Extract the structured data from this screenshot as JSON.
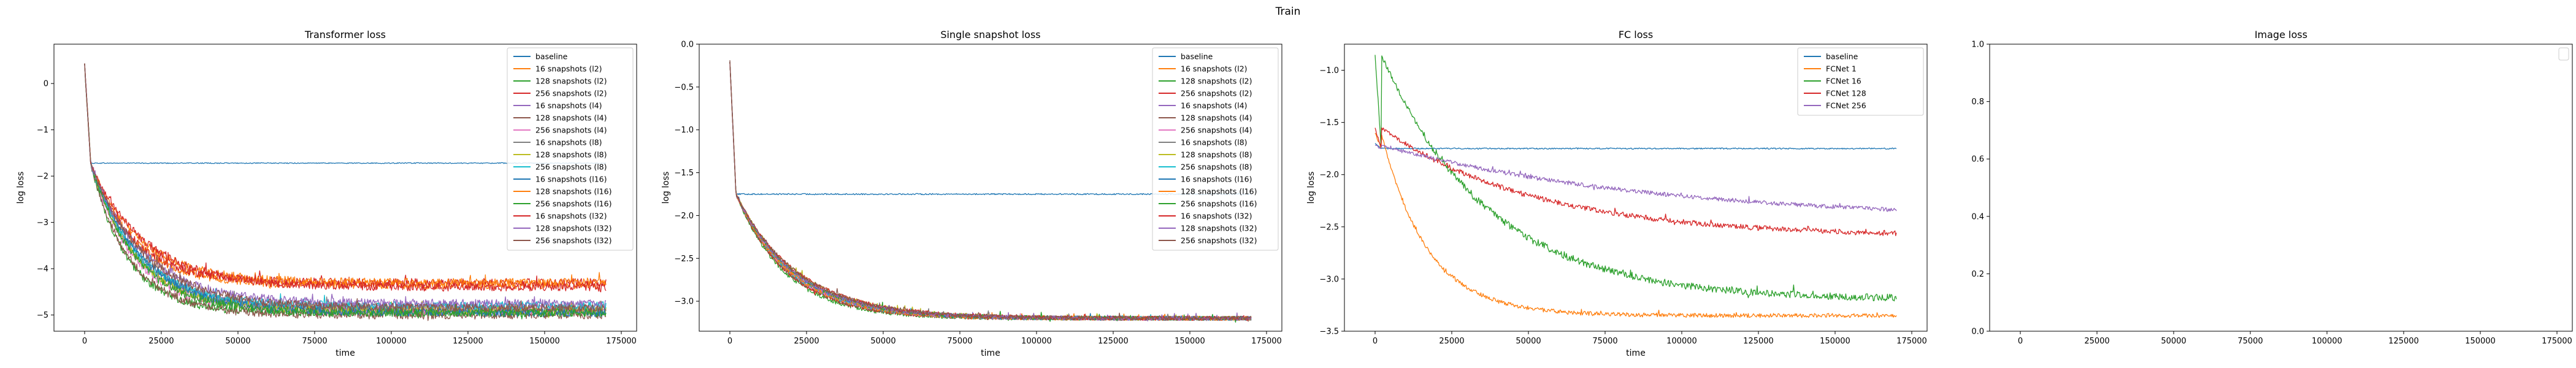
{
  "figure": {
    "suptitle": "Train"
  },
  "chart_data": [
    {
      "type": "line",
      "title": "Transformer loss",
      "xlabel": "time",
      "ylabel": "log loss",
      "xlim": [
        -10000,
        180000
      ],
      "ylim": [
        -5.35,
        0.85
      ],
      "xticks": [
        0,
        25000,
        50000,
        75000,
        100000,
        125000,
        150000,
        175000
      ],
      "yticks": [
        -5,
        -4,
        -3,
        -2,
        -1,
        0
      ],
      "legend": "top-right",
      "series": [
        {
          "name": "baseline",
          "color": "#1f77b4",
          "curve": {
            "start": 0.4,
            "end": -1.72,
            "tau": 0,
            "noise": 0.01,
            "flat": -1.72
          }
        },
        {
          "name": "16 snapshots (l2)",
          "color": "#ff7f0e",
          "curve": {
            "start": 0.4,
            "end": -4.35,
            "tau": 14000,
            "noise": 0.09
          }
        },
        {
          "name": "128 snapshots (l2)",
          "color": "#2ca02c",
          "curve": {
            "start": 0.4,
            "end": -4.95,
            "tau": 12000,
            "noise": 0.09
          }
        },
        {
          "name": "256 snapshots (l2)",
          "color": "#d62728",
          "curve": {
            "start": 0.4,
            "end": -4.3,
            "tau": 14000,
            "noise": 0.09
          }
        },
        {
          "name": "16 snapshots (l4)",
          "color": "#9467bd",
          "curve": {
            "start": 0.4,
            "end": -4.85,
            "tau": 15000,
            "noise": 0.09
          }
        },
        {
          "name": "128 snapshots (l4)",
          "color": "#8c564b",
          "curve": {
            "start": 0.4,
            "end": -5.0,
            "tau": 13000,
            "noise": 0.09
          }
        },
        {
          "name": "256 snapshots (l4)",
          "color": "#e377c2",
          "curve": {
            "start": 0.4,
            "end": -4.9,
            "tau": 14000,
            "noise": 0.09
          }
        },
        {
          "name": "16 snapshots (l8)",
          "color": "#7f7f7f",
          "curve": {
            "start": 0.4,
            "end": -4.85,
            "tau": 16000,
            "noise": 0.09
          }
        },
        {
          "name": "128 snapshots (l8)",
          "color": "#bcbd22",
          "curve": {
            "start": 0.4,
            "end": -4.9,
            "tau": 15000,
            "noise": 0.09
          }
        },
        {
          "name": "256 snapshots (l8)",
          "color": "#17becf",
          "curve": {
            "start": 0.4,
            "end": -4.8,
            "tau": 15000,
            "noise": 0.09
          }
        },
        {
          "name": "16 snapshots (l16)",
          "color": "#1f77b4",
          "curve": {
            "start": 0.4,
            "end": -4.95,
            "tau": 17000,
            "noise": 0.09
          }
        },
        {
          "name": "128 snapshots (l16)",
          "color": "#ff7f0e",
          "curve": {
            "start": 0.4,
            "end": -4.3,
            "tau": 16000,
            "noise": 0.09
          }
        },
        {
          "name": "256 snapshots (l16)",
          "color": "#2ca02c",
          "curve": {
            "start": 0.4,
            "end": -4.95,
            "tau": 15000,
            "noise": 0.09
          }
        },
        {
          "name": "16 snapshots (l32)",
          "color": "#d62728",
          "curve": {
            "start": 0.4,
            "end": -4.4,
            "tau": 18000,
            "noise": 0.09
          }
        },
        {
          "name": "128 snapshots (l32)",
          "color": "#9467bd",
          "curve": {
            "start": 0.4,
            "end": -4.75,
            "tau": 17000,
            "noise": 0.09
          }
        },
        {
          "name": "256 snapshots (l32)",
          "color": "#8c564b",
          "curve": {
            "start": 0.4,
            "end": -4.85,
            "tau": 18000,
            "noise": 0.09
          }
        }
      ]
    },
    {
      "type": "line",
      "title": "Single snapshot loss",
      "xlabel": "time",
      "ylabel": "log loss",
      "xlim": [
        -10000,
        180000
      ],
      "ylim": [
        -3.35,
        0.0
      ],
      "xticks": [
        0,
        25000,
        50000,
        75000,
        100000,
        125000,
        150000,
        175000
      ],
      "yticks": [
        -3.0,
        -2.5,
        -2.0,
        -1.5,
        -1.0,
        -0.5,
        0.0
      ],
      "legend": "top-right",
      "series": [
        {
          "name": "baseline",
          "color": "#1f77b4",
          "curve": {
            "start": -0.2,
            "end": -1.75,
            "tau": 0,
            "noise": 0.008,
            "flat": -1.75
          }
        },
        {
          "name": "16 snapshots (l2)",
          "color": "#ff7f0e",
          "curve": {
            "start": -0.2,
            "end": -3.2,
            "tau": 17000,
            "noise": 0.025
          }
        },
        {
          "name": "128 snapshots (l2)",
          "color": "#2ca02c",
          "curve": {
            "start": -0.2,
            "end": -3.2,
            "tau": 16000,
            "noise": 0.025
          }
        },
        {
          "name": "256 snapshots (l2)",
          "color": "#d62728",
          "curve": {
            "start": -0.2,
            "end": -3.2,
            "tau": 17000,
            "noise": 0.025
          }
        },
        {
          "name": "16 snapshots (l4)",
          "color": "#9467bd",
          "curve": {
            "start": -0.2,
            "end": -3.2,
            "tau": 18000,
            "noise": 0.025
          }
        },
        {
          "name": "128 snapshots (l4)",
          "color": "#8c564b",
          "curve": {
            "start": -0.2,
            "end": -3.2,
            "tau": 17000,
            "noise": 0.025
          }
        },
        {
          "name": "256 snapshots (l4)",
          "color": "#e377c2",
          "curve": {
            "start": -0.2,
            "end": -3.2,
            "tau": 18000,
            "noise": 0.025
          }
        },
        {
          "name": "16 snapshots (l8)",
          "color": "#7f7f7f",
          "curve": {
            "start": -0.2,
            "end": -3.2,
            "tau": 19000,
            "noise": 0.025
          }
        },
        {
          "name": "128 snapshots (l8)",
          "color": "#bcbd22",
          "curve": {
            "start": -0.2,
            "end": -3.2,
            "tau": 20000,
            "noise": 0.025
          }
        },
        {
          "name": "256 snapshots (l8)",
          "color": "#17becf",
          "curve": {
            "start": -0.2,
            "end": -3.2,
            "tau": 18000,
            "noise": 0.025
          }
        },
        {
          "name": "16 snapshots (l16)",
          "color": "#1f77b4",
          "curve": {
            "start": -0.2,
            "end": -3.2,
            "tau": 19000,
            "noise": 0.025
          }
        },
        {
          "name": "128 snapshots (l16)",
          "color": "#ff7f0e",
          "curve": {
            "start": -0.2,
            "end": -3.2,
            "tau": 18000,
            "noise": 0.025
          }
        },
        {
          "name": "256 snapshots (l16)",
          "color": "#2ca02c",
          "curve": {
            "start": -0.2,
            "end": -3.2,
            "tau": 19000,
            "noise": 0.025
          }
        },
        {
          "name": "16 snapshots (l32)",
          "color": "#d62728",
          "curve": {
            "start": -0.2,
            "end": -3.2,
            "tau": 20000,
            "noise": 0.025
          }
        },
        {
          "name": "128 snapshots (l32)",
          "color": "#9467bd",
          "curve": {
            "start": -0.2,
            "end": -3.2,
            "tau": 19000,
            "noise": 0.025
          }
        },
        {
          "name": "256 snapshots (l32)",
          "color": "#8c564b",
          "curve": {
            "start": -0.2,
            "end": -3.2,
            "tau": 20000,
            "noise": 0.025
          }
        }
      ]
    },
    {
      "type": "line",
      "title": "FC loss",
      "xlabel": "time",
      "ylabel": "log loss",
      "xlim": [
        -10000,
        180000
      ],
      "ylim": [
        -3.5,
        -0.75
      ],
      "xticks": [
        0,
        25000,
        50000,
        75000,
        100000,
        125000,
        150000,
        175000
      ],
      "yticks": [
        -3.5,
        -3.0,
        -2.5,
        -2.0,
        -1.5,
        -1.0
      ],
      "legend": "top-right",
      "series": [
        {
          "name": "baseline",
          "color": "#1f77b4",
          "curve": {
            "start": -1.7,
            "end": -1.75,
            "tau": 0,
            "noise": 0.006,
            "flat": -1.75
          }
        },
        {
          "name": "FCNet 1",
          "color": "#ff7f0e",
          "curve": {
            "start": -1.6,
            "end": -3.35,
            "tau": 15000,
            "noise": 0.02
          }
        },
        {
          "name": "FCNet 16",
          "color": "#2ca02c",
          "curve": {
            "start": -0.85,
            "end": -3.2,
            "tau": 35000,
            "noise": 0.035
          }
        },
        {
          "name": "FCNet 128",
          "color": "#d62728",
          "curve": {
            "start": -1.55,
            "end": -2.6,
            "tau": 50000,
            "noise": 0.025
          }
        },
        {
          "name": "FCNet 256",
          "color": "#9467bd",
          "curve": {
            "start": -1.72,
            "end": -2.45,
            "tau": 90000,
            "noise": 0.02
          }
        }
      ]
    },
    {
      "type": "line",
      "title": "Image loss",
      "xlabel": "",
      "ylabel": "",
      "xlim": [
        -10000,
        180000
      ],
      "ylim": [
        0.0,
        1.0
      ],
      "xticks": [
        0,
        25000,
        50000,
        75000,
        100000,
        125000,
        150000,
        175000
      ],
      "yticks": [
        0.0,
        0.2,
        0.4,
        0.6,
        0.8,
        1.0
      ],
      "legend": "top-right",
      "series": []
    }
  ]
}
